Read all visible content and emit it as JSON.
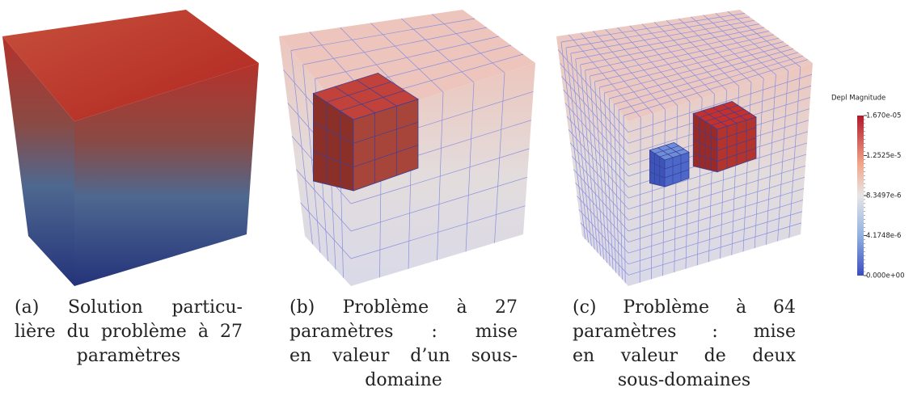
{
  "panels": [
    {
      "caption_lines": [
        "(a) Solution particu-",
        "lière du problème à 27",
        "paramètres"
      ]
    },
    {
      "caption_lines": [
        "(b) Problème à 27",
        "paramètres : mise",
        "en valeur d’un sous-",
        "domaine"
      ]
    },
    {
      "caption_lines": [
        "(c) Problème à 64",
        "paramètres : mise",
        "en valeur de deux",
        "sous-domaines"
      ]
    }
  ],
  "colorbar": {
    "title": "Depl Magnitude",
    "labels": [
      "1.670e-05",
      "1.2525e-5",
      "8.3497e-6",
      "4.1748e-6",
      "0.000e+00"
    ]
  }
}
